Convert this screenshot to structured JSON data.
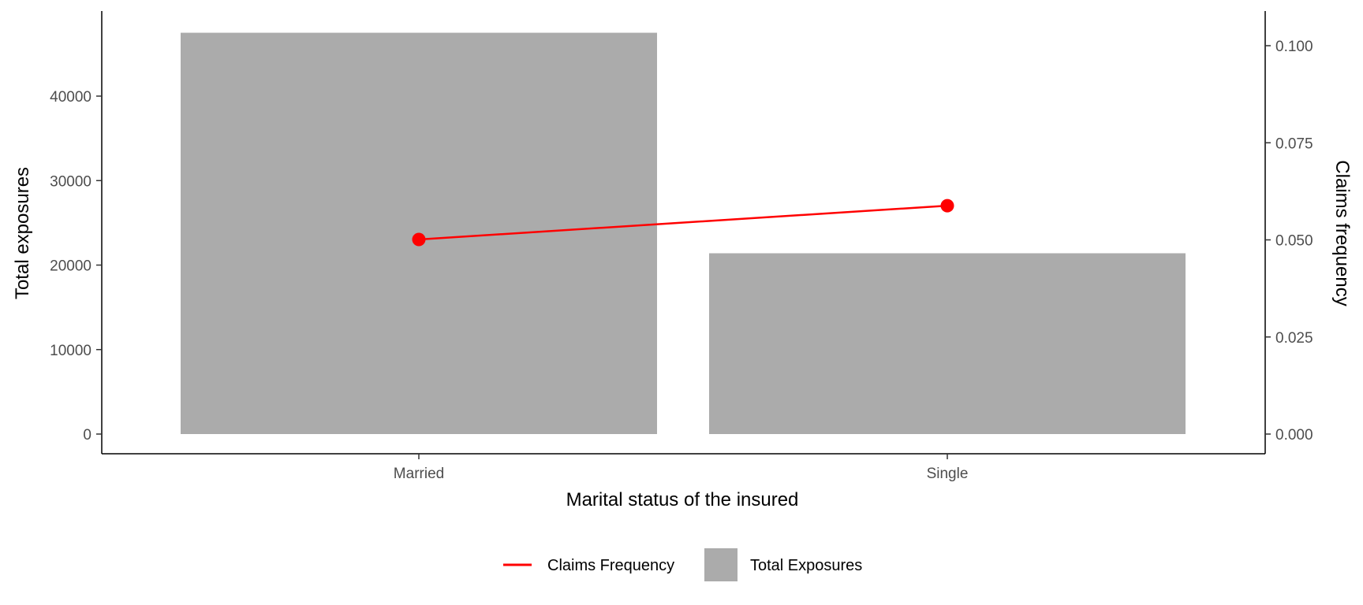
{
  "chart_data": {
    "type": "bar",
    "categories": [
      "Married",
      "Single"
    ],
    "xlabel": "Marital status of the insured",
    "series": [
      {
        "name": "Total Exposures",
        "type": "bar",
        "axis": "left",
        "values": [
          47500,
          21400
        ],
        "color": "#ababab"
      },
      {
        "name": "Claims Frequency",
        "type": "line",
        "axis": "right",
        "values": [
          0.0501,
          0.0588
        ],
        "color": "#ff0000"
      }
    ],
    "y_left": {
      "label": "Total exposures",
      "ticks": [
        0,
        10000,
        20000,
        30000,
        40000
      ],
      "tick_labels": [
        "0",
        "10000",
        "20000",
        "30000",
        "40000"
      ]
    },
    "y_right": {
      "label": "Claims frequency",
      "ticks": [
        0,
        0.025,
        0.05,
        0.075,
        0.1
      ],
      "tick_labels": [
        "0.000",
        "0.025",
        "0.050",
        "0.075",
        "0.100"
      ]
    },
    "legend": {
      "position": "bottom",
      "entries": [
        {
          "label": "Claims Frequency",
          "kind": "line",
          "color": "#ff0000"
        },
        {
          "label": "Total Exposures",
          "kind": "box",
          "color": "#ababab"
        }
      ]
    },
    "grid": false
  }
}
